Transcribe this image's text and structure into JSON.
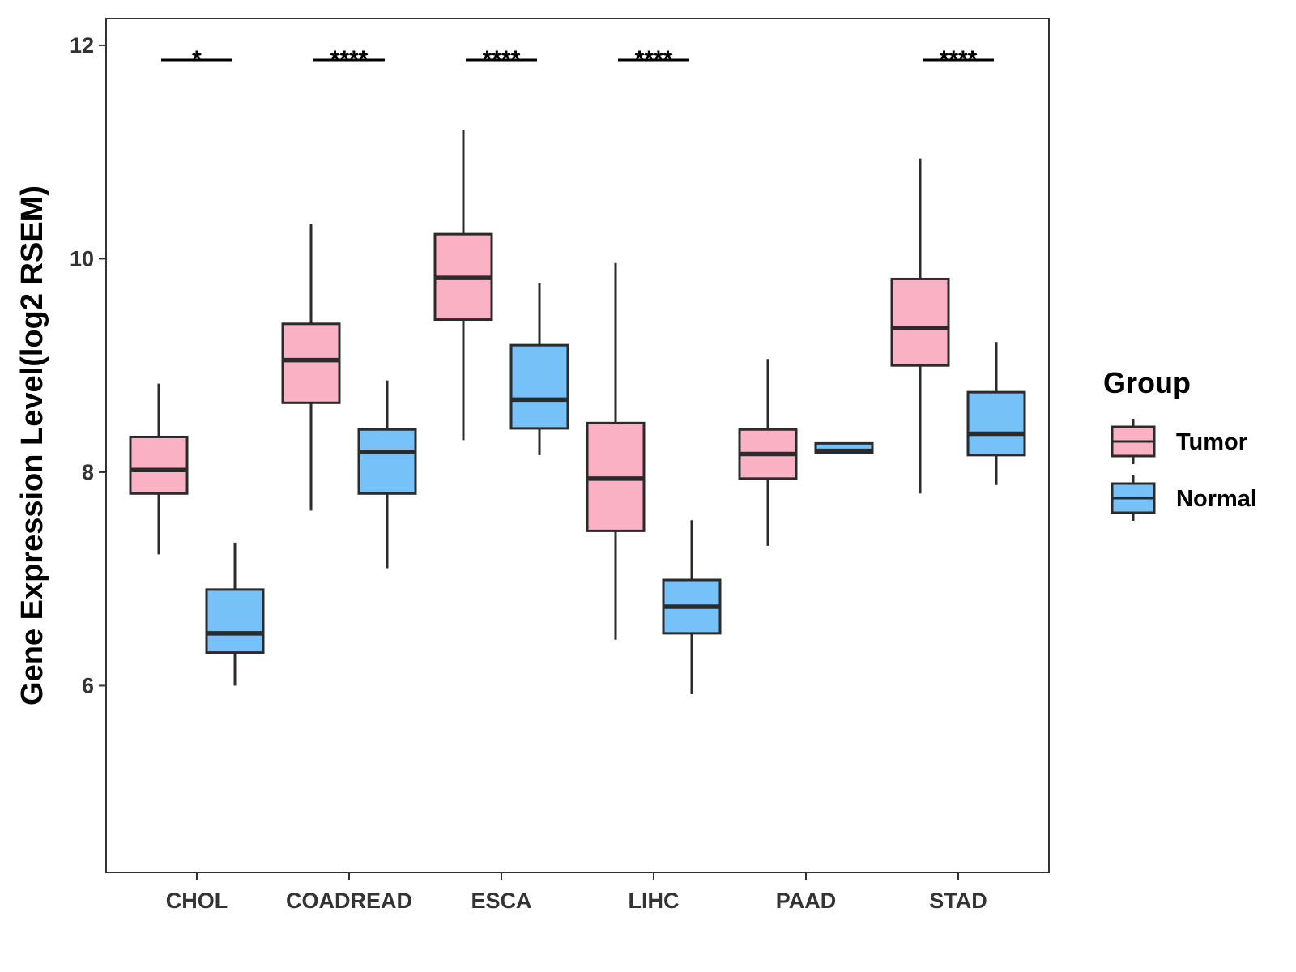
{
  "chart_data": {
    "type": "boxplot",
    "title": "",
    "xlabel": "",
    "ylabel": "Gene Expression Level(log2 RSEM)",
    "ylim": [
      4.25,
      12.25
    ],
    "yticks": [
      6,
      8,
      10,
      12
    ],
    "grid": false,
    "legend": {
      "title": "Group",
      "position": "right"
    },
    "categories": [
      "CHOL",
      "COADREAD",
      "ESCA",
      "LIHC",
      "PAAD",
      "STAD"
    ],
    "series": [
      {
        "name": "Tumor",
        "color": "#fbb1c4",
        "boxes": [
          {
            "min": 7.23,
            "q1": 7.8,
            "median": 8.02,
            "q3": 8.33,
            "max": 8.83
          },
          {
            "min": 7.64,
            "q1": 8.65,
            "median": 9.05,
            "q3": 9.39,
            "max": 10.33
          },
          {
            "min": 8.3,
            "q1": 9.43,
            "median": 9.82,
            "q3": 10.23,
            "max": 11.21
          },
          {
            "min": 6.43,
            "q1": 7.45,
            "median": 7.94,
            "q3": 8.46,
            "max": 9.96
          },
          {
            "min": 7.31,
            "q1": 7.94,
            "median": 8.17,
            "q3": 8.4,
            "max": 9.06
          },
          {
            "min": 7.8,
            "q1": 9.0,
            "median": 9.35,
            "q3": 9.81,
            "max": 10.94
          }
        ]
      },
      {
        "name": "Normal",
        "color": "#76c1f7",
        "boxes": [
          {
            "min": 6.0,
            "q1": 6.31,
            "median": 6.49,
            "q3": 6.9,
            "max": 7.34
          },
          {
            "min": 7.1,
            "q1": 7.8,
            "median": 8.19,
            "q3": 8.4,
            "max": 8.86
          },
          {
            "min": 8.16,
            "q1": 8.41,
            "median": 8.68,
            "q3": 9.19,
            "max": 9.77
          },
          {
            "min": 5.92,
            "q1": 6.49,
            "median": 6.74,
            "q3": 6.99,
            "max": 7.55
          },
          {
            "min": 8.18,
            "q1": 8.18,
            "median": 8.2,
            "q3": 8.27,
            "max": 8.27
          },
          {
            "min": 7.88,
            "q1": 8.16,
            "median": 8.36,
            "q3": 8.75,
            "max": 9.22
          }
        ]
      }
    ],
    "significance": [
      "*",
      "****",
      "****",
      "****",
      "",
      "****"
    ]
  }
}
